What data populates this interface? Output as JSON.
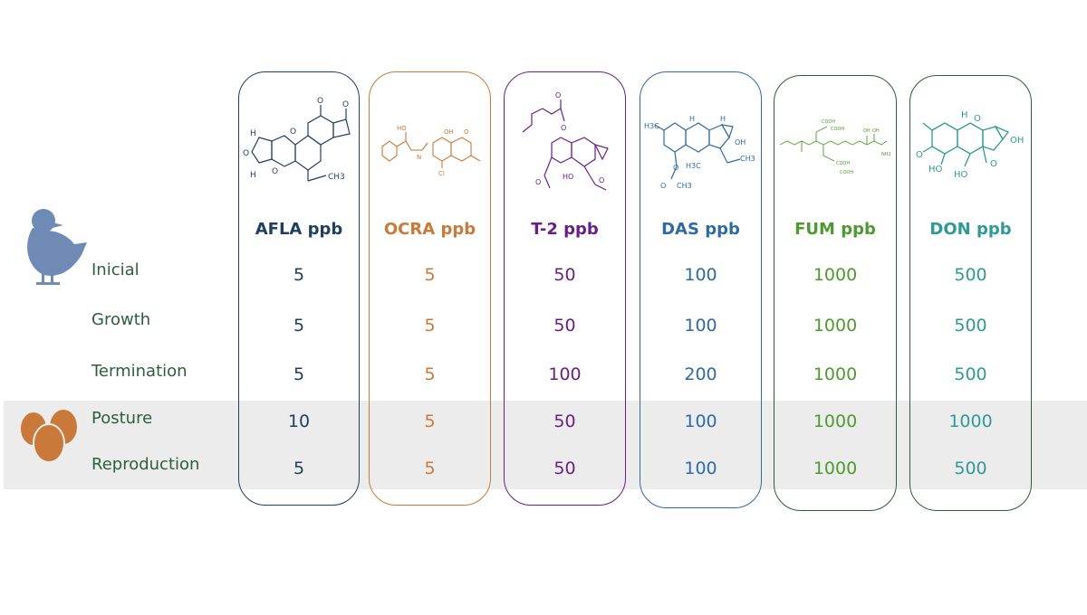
{
  "stages": [
    {
      "label": "Inicial"
    },
    {
      "label": "Growth"
    },
    {
      "label": "Termination"
    },
    {
      "label": "Posture"
    },
    {
      "label": "Reproduction"
    }
  ],
  "mycotoxins": [
    {
      "header": "AFLA ppb",
      "color": "#1f3f5e",
      "values": [
        "5",
        "5",
        "5",
        "10",
        "5"
      ]
    },
    {
      "header": "OCRA ppb",
      "color": "#c97a3a",
      "values": [
        "5",
        "5",
        "5",
        "5",
        "5"
      ]
    },
    {
      "header": "T-2 ppb",
      "color": "#6a1f86",
      "values": [
        "50",
        "50",
        "100",
        "50",
        "50"
      ]
    },
    {
      "header": "DAS ppb",
      "color": "#2f6aa3",
      "values": [
        "100",
        "100",
        "200",
        "100",
        "100"
      ]
    },
    {
      "header": "FUM ppb",
      "color": "#4e9a2f",
      "values": [
        "1000",
        "1000",
        "1000",
        "1000",
        "1000"
      ]
    },
    {
      "header": "DON ppb",
      "color": "#2f9a93",
      "values": [
        "500",
        "500",
        "500",
        "1000",
        "500"
      ]
    }
  ],
  "colors": {
    "row_label": "#2f5d3f",
    "band": "#ececec",
    "chick_icon": "#6f8ab5",
    "egg_icon": "#c97a3a",
    "fum_border": "#2f5d3f",
    "don_border": "#2f5d3f"
  },
  "icons": [
    "chick-icon",
    "eggs-icon"
  ]
}
